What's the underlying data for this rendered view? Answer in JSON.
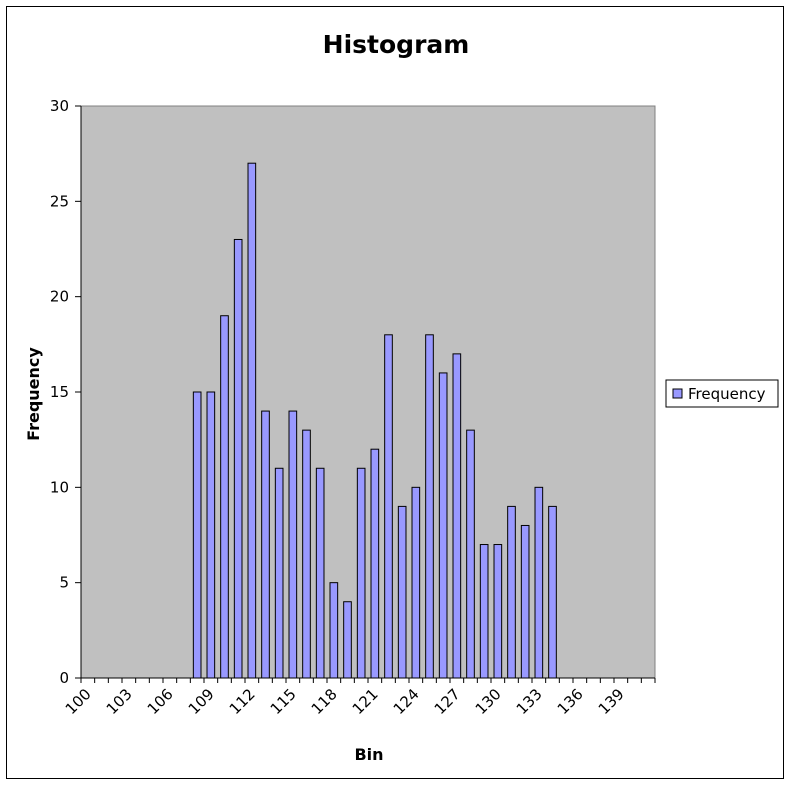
{
  "chart_data": {
    "type": "bar",
    "title": "Histogram",
    "xlabel": "Bin",
    "ylabel": "Frequency",
    "ylim": [
      0,
      30
    ],
    "yticks": [
      "0",
      "5",
      "10",
      "15",
      "20",
      "25",
      "30"
    ],
    "categories": [
      100,
      101,
      102,
      103,
      104,
      105,
      106,
      107,
      108,
      109,
      110,
      111,
      112,
      113,
      114,
      115,
      116,
      117,
      118,
      119,
      120,
      121,
      122,
      123,
      124,
      125,
      126,
      127,
      128,
      129,
      130,
      131,
      132,
      133,
      134,
      135,
      136,
      137,
      138,
      139,
      140,
      141
    ],
    "xtick_labels": [
      "100",
      "103",
      "106",
      "109",
      "112",
      "115",
      "118",
      "121",
      "124",
      "127",
      "130",
      "133",
      "136",
      "139"
    ],
    "series": [
      {
        "name": "Frequency",
        "values": [
          0,
          0,
          0,
          0,
          0,
          0,
          0,
          0,
          15,
          15,
          19,
          23,
          27,
          14,
          11,
          14,
          13,
          11,
          5,
          4,
          11,
          12,
          18,
          9,
          10,
          18,
          16,
          17,
          13,
          7,
          7,
          9,
          8,
          10,
          9,
          0,
          0,
          0,
          0,
          0,
          0,
          0
        ]
      }
    ],
    "legend": "right",
    "grid": false,
    "colors": {
      "plot_bg": "#C0C0C0",
      "bar_fill": "#9999FF",
      "bar_stroke": "#000000"
    }
  }
}
